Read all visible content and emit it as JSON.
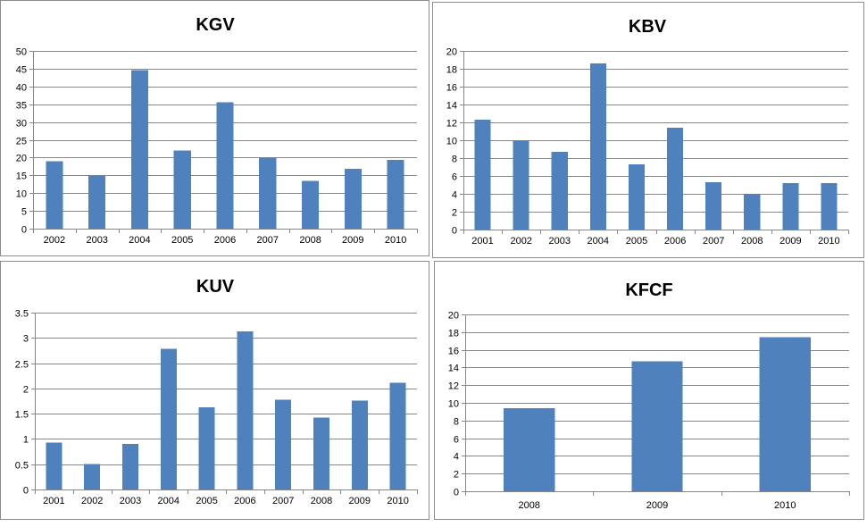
{
  "colors": {
    "bar": "#4f81bd",
    "grid": "#878787",
    "border": "#8c8c8c"
  },
  "chart_data": [
    {
      "type": "bar",
      "title": "KGV",
      "xlabel": "",
      "ylabel": "",
      "categories": [
        "2002",
        "2003",
        "2004",
        "2005",
        "2006",
        "2007",
        "2008",
        "2009",
        "2010"
      ],
      "values": [
        19,
        15,
        44.6,
        22,
        35.6,
        20,
        13.5,
        16.8,
        19.3
      ],
      "ylim": [
        0,
        50
      ],
      "ystep": 5,
      "grid": true,
      "legend": "none"
    },
    {
      "type": "bar",
      "title": "KBV",
      "xlabel": "",
      "ylabel": "",
      "categories": [
        "2001",
        "2002",
        "2003",
        "2004",
        "2005",
        "2006",
        "2007",
        "2008",
        "2009",
        "2010"
      ],
      "values": [
        12.3,
        10,
        8.7,
        18.6,
        7.3,
        11.4,
        5.3,
        4,
        5.2,
        5.2
      ],
      "ylim": [
        0,
        20
      ],
      "ystep": 2,
      "grid": true,
      "legend": "none"
    },
    {
      "type": "bar",
      "title": "KUV",
      "xlabel": "",
      "ylabel": "",
      "categories": [
        "2001",
        "2002",
        "2003",
        "2004",
        "2005",
        "2006",
        "2007",
        "2008",
        "2009",
        "2010"
      ],
      "values": [
        0.93,
        0.5,
        0.9,
        2.78,
        1.63,
        3.13,
        1.78,
        1.42,
        1.76,
        2.11
      ],
      "ylim": [
        0,
        3.5
      ],
      "ystep": 0.5,
      "grid": true,
      "legend": "none"
    },
    {
      "type": "bar",
      "title": "KFCF",
      "xlabel": "",
      "ylabel": "",
      "categories": [
        "2008",
        "2009",
        "2010"
      ],
      "values": [
        9.4,
        14.7,
        17.4
      ],
      "ylim": [
        0,
        20
      ],
      "ystep": 2,
      "grid": true,
      "legend": "none"
    }
  ]
}
